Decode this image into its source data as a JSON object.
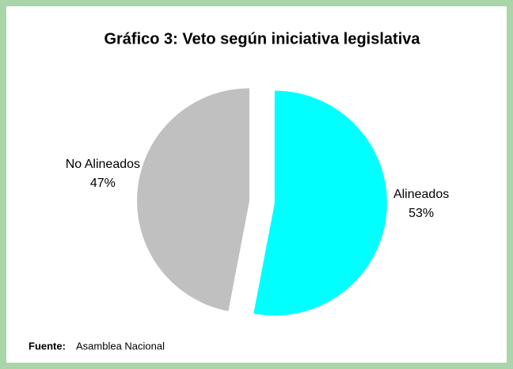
{
  "chart_data": {
    "type": "pie",
    "title": "Gráfico 3: Veto según iniciativa legislativa",
    "categories": [
      "Alineados",
      "No Alineados"
    ],
    "values": [
      53,
      47
    ],
    "value_labels": [
      "53%",
      "47%"
    ],
    "colors": [
      "#00ffff",
      "#c0c0c0"
    ],
    "source_label": "Fuente:",
    "source": "Asamblea Nacional"
  }
}
